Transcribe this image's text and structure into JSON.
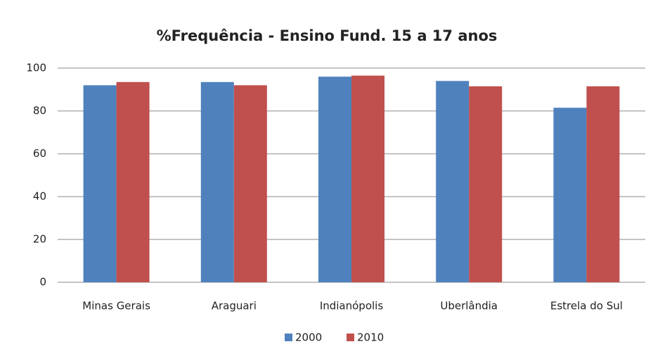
{
  "chart_data": {
    "type": "bar",
    "title": "%Frequência - Ensino Fund. 15 a 17 anos",
    "categories": [
      "Minas Gerais",
      "Araguari",
      "Indianópolis",
      "Uberlândia",
      "Estrela do Sul"
    ],
    "series": [
      {
        "name": "2000",
        "color": "#4f81bd",
        "values": [
          92,
          93.5,
          96,
          94,
          81.5
        ]
      },
      {
        "name": "2010",
        "color": "#c0504d",
        "values": [
          93.5,
          92,
          96.5,
          91.5,
          91.5
        ]
      }
    ],
    "ylim": [
      0,
      100
    ],
    "yticks": [
      0,
      20,
      40,
      60,
      80,
      100
    ],
    "grid": true,
    "legend": "bottom"
  }
}
